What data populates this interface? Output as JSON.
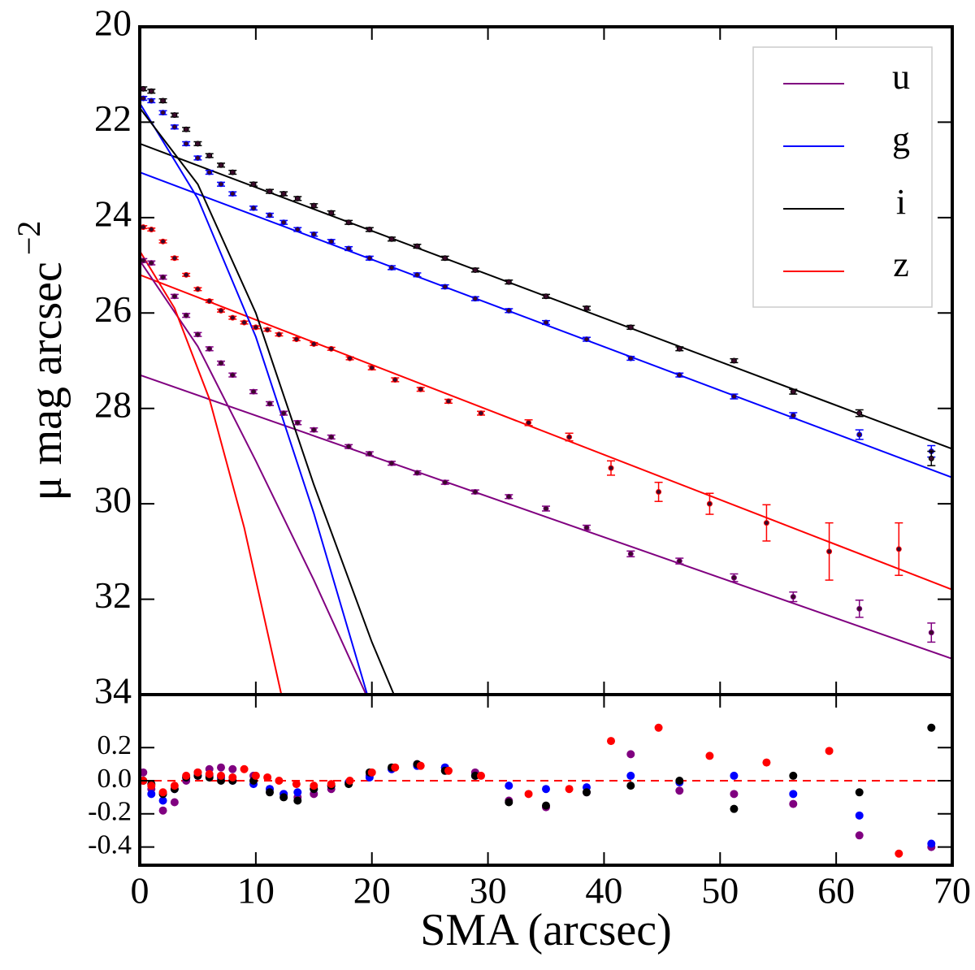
{
  "chart_data": [
    {
      "type": "scatter",
      "panel": "profile",
      "ylabel": "μ mag arcsec",
      "ylabel_exponent": "−2",
      "xlim": [
        0,
        70
      ],
      "ylim": [
        20,
        34
      ],
      "y_inverted": true,
      "yticks": [
        20,
        22,
        24,
        26,
        28,
        30,
        32,
        34
      ],
      "legend": "upper right",
      "series": [
        {
          "name": "u",
          "color": "#800080",
          "x": [
            0.3,
            1,
            2,
            3,
            4,
            5,
            6,
            7,
            8,
            9.8,
            11.2,
            12.4,
            13.6,
            15,
            16.5,
            18,
            19.8,
            21.7,
            23.9,
            26.3,
            28.9,
            31.8,
            35,
            38.5,
            42.3,
            46.5,
            51.2,
            56.3,
            62,
            68.2
          ],
          "values": [
            24.9,
            24.95,
            25.25,
            25.65,
            26.05,
            26.45,
            26.75,
            27.05,
            27.3,
            27.65,
            27.9,
            28.1,
            28.3,
            28.45,
            28.6,
            28.8,
            28.95,
            29.15,
            29.35,
            29.55,
            29.75,
            29.85,
            30.1,
            30.5,
            31.05,
            31.2,
            31.55,
            31.95,
            32.2,
            32.7
          ],
          "errors": [
            0.04,
            0.04,
            0.04,
            0.04,
            0.04,
            0.04,
            0.04,
            0.04,
            0.04,
            0.04,
            0.04,
            0.04,
            0.04,
            0.04,
            0.04,
            0.04,
            0.04,
            0.04,
            0.04,
            0.04,
            0.04,
            0.04,
            0.05,
            0.05,
            0.06,
            0.06,
            0.08,
            0.1,
            0.18,
            0.2
          ]
        },
        {
          "name": "g",
          "color": "#0000ff",
          "x": [
            0.3,
            1,
            2,
            3,
            4,
            5,
            6,
            7,
            8,
            9.8,
            11.2,
            12.4,
            13.6,
            15,
            16.5,
            18,
            19.8,
            21.7,
            23.9,
            26.3,
            28.9,
            31.8,
            35,
            38.5,
            42.3,
            46.5,
            51.2,
            56.3,
            62,
            68.2
          ],
          "values": [
            21.5,
            21.55,
            21.8,
            22.1,
            22.45,
            22.75,
            23.05,
            23.3,
            23.5,
            23.8,
            23.95,
            24.1,
            24.25,
            24.35,
            24.5,
            24.65,
            24.85,
            25.05,
            25.2,
            25.45,
            25.7,
            25.95,
            26.2,
            26.55,
            26.95,
            27.3,
            27.75,
            28.15,
            28.55,
            28.9
          ],
          "errors": [
            0.04,
            0.04,
            0.04,
            0.04,
            0.04,
            0.04,
            0.04,
            0.04,
            0.04,
            0.04,
            0.04,
            0.04,
            0.04,
            0.04,
            0.04,
            0.04,
            0.04,
            0.04,
            0.04,
            0.04,
            0.04,
            0.04,
            0.04,
            0.04,
            0.04,
            0.04,
            0.05,
            0.06,
            0.1,
            0.12
          ]
        },
        {
          "name": "i",
          "color": "#000000",
          "x": [
            0.3,
            1,
            2,
            3,
            4,
            5,
            6,
            7,
            8,
            9.8,
            11.2,
            12.4,
            13.6,
            15,
            16.5,
            18,
            19.8,
            21.7,
            23.9,
            26.3,
            28.9,
            31.8,
            35,
            38.5,
            42.3,
            46.5,
            51.2,
            56.3,
            62,
            68.2
          ],
          "values": [
            21.3,
            21.35,
            21.55,
            21.85,
            22.15,
            22.45,
            22.7,
            22.9,
            23.05,
            23.3,
            23.45,
            23.5,
            23.6,
            23.75,
            23.9,
            24.1,
            24.25,
            24.45,
            24.6,
            24.85,
            25.1,
            25.35,
            25.65,
            25.9,
            26.3,
            26.75,
            27.0,
            27.65,
            28.1,
            29.05
          ],
          "errors": [
            0.04,
            0.04,
            0.04,
            0.04,
            0.04,
            0.04,
            0.04,
            0.04,
            0.04,
            0.04,
            0.04,
            0.04,
            0.04,
            0.04,
            0.04,
            0.04,
            0.04,
            0.04,
            0.04,
            0.04,
            0.04,
            0.04,
            0.04,
            0.04,
            0.04,
            0.04,
            0.04,
            0.05,
            0.07,
            0.15
          ]
        },
        {
          "name": "z",
          "color": "#ff0000",
          "x": [
            0.3,
            1,
            2,
            3,
            4,
            5,
            6,
            7,
            8,
            9,
            10,
            11,
            12,
            13.5,
            15,
            16.5,
            18.1,
            20,
            22,
            24.2,
            26.6,
            29.4,
            33.5,
            37,
            40.6,
            44.7,
            49.1,
            54,
            59.4,
            65.4
          ],
          "values": [
            24.2,
            24.25,
            24.5,
            24.85,
            25.2,
            25.5,
            25.75,
            25.95,
            26.1,
            26.2,
            26.3,
            26.35,
            26.45,
            26.55,
            26.65,
            26.75,
            26.95,
            27.15,
            27.4,
            27.6,
            27.85,
            28.1,
            28.3,
            28.6,
            29.25,
            29.75,
            30.0,
            30.4,
            31.0,
            30.95
          ],
          "errors": [
            0.03,
            0.03,
            0.03,
            0.03,
            0.03,
            0.03,
            0.03,
            0.03,
            0.03,
            0.03,
            0.03,
            0.03,
            0.03,
            0.03,
            0.03,
            0.03,
            0.03,
            0.04,
            0.04,
            0.04,
            0.04,
            0.04,
            0.06,
            0.08,
            0.15,
            0.2,
            0.22,
            0.38,
            0.6,
            0.55
          ]
        }
      ],
      "models": [
        {
          "color": "#800080",
          "x": [
            0,
            70
          ],
          "values": [
            27.3,
            33.25
          ]
        },
        {
          "color": "#0000ff",
          "x": [
            0,
            70
          ],
          "values": [
            23.05,
            29.45
          ]
        },
        {
          "color": "#000000",
          "x": [
            0,
            70
          ],
          "values": [
            22.45,
            28.85
          ]
        },
        {
          "color": "#ff0000",
          "x": [
            0,
            70
          ],
          "values": [
            25.2,
            31.8
          ]
        },
        {
          "color": "#800080",
          "x": [
            0,
            5,
            10,
            15,
            19.5
          ],
          "values": [
            24.9,
            26.7,
            29.1,
            31.6,
            34
          ]
        },
        {
          "color": "#0000ff",
          "x": [
            0,
            5,
            10,
            15,
            19.6
          ],
          "values": [
            21.6,
            23.6,
            26.5,
            30.2,
            34
          ]
        },
        {
          "color": "#000000",
          "x": [
            0,
            5,
            10,
            15,
            20,
            21.9
          ],
          "values": [
            21.7,
            23.3,
            26.0,
            29.6,
            32.9,
            34
          ]
        },
        {
          "color": "#ff0000",
          "x": [
            0,
            3,
            6,
            9,
            12.2
          ],
          "values": [
            24.7,
            25.9,
            27.8,
            30.5,
            34
          ]
        }
      ]
    },
    {
      "type": "scatter",
      "panel": "residuals",
      "xlabel": "SMA (arcsec)",
      "xlim": [
        0,
        70
      ],
      "xticks": [
        0,
        10,
        20,
        30,
        40,
        50,
        60,
        70
      ],
      "ylim": [
        -0.51,
        0.52
      ],
      "yticks": [
        -0.4,
        -0.2,
        {
          "value": 0,
          "label": "0.0"
        },
        0.2
      ],
      "reference_line": {
        "value": 0,
        "color": "#ff0000"
      },
      "series": [
        {
          "name": "u",
          "color": "#800080",
          "values": [
            0.05,
            -0.05,
            -0.18,
            -0.13,
            0.0,
            0.05,
            0.07,
            0.08,
            0.07,
            0.03,
            -0.05,
            -0.08,
            -0.1,
            -0.08,
            -0.05,
            -0.01,
            0.03,
            0.07,
            0.1,
            0.08,
            0.05,
            -0.12,
            -0.16,
            -0.07,
            0.16,
            -0.06,
            -0.08,
            -0.14,
            -0.33,
            -0.4
          ]
        },
        {
          "name": "g",
          "color": "#0000ff",
          "values": [
            0.0,
            -0.08,
            -0.12,
            -0.05,
            0.02,
            0.03,
            0.03,
            0.02,
            0.0,
            -0.02,
            -0.05,
            -0.08,
            -0.07,
            -0.05,
            -0.03,
            -0.01,
            0.02,
            0.07,
            0.09,
            0.08,
            0.03,
            -0.03,
            -0.05,
            -0.04,
            0.03,
            -0.01,
            0.03,
            -0.08,
            -0.21,
            -0.38
          ]
        },
        {
          "name": "i",
          "color": "#000000",
          "values": [
            0.0,
            -0.02,
            -0.08,
            -0.05,
            0.02,
            0.03,
            0.02,
            0.0,
            0.0,
            0.0,
            -0.07,
            -0.1,
            -0.12,
            -0.05,
            -0.03,
            -0.02,
            0.05,
            0.08,
            0.1,
            0.06,
            0.03,
            -0.13,
            -0.15,
            -0.07,
            -0.03,
            0.0,
            -0.17,
            0.03,
            -0.07,
            0.32
          ]
        },
        {
          "name": "z",
          "color": "#ff0000",
          "values": [
            0.0,
            -0.03,
            -0.07,
            -0.03,
            0.03,
            0.05,
            0.04,
            0.03,
            0.02,
            0.07,
            0.03,
            0.02,
            0.0,
            -0.02,
            -0.03,
            -0.02,
            0.0,
            0.05,
            0.08,
            0.09,
            0.06,
            0.03,
            -0.08,
            -0.05,
            0.24,
            0.32,
            0.15,
            0.11,
            0.18,
            -0.44
          ]
        }
      ]
    }
  ]
}
